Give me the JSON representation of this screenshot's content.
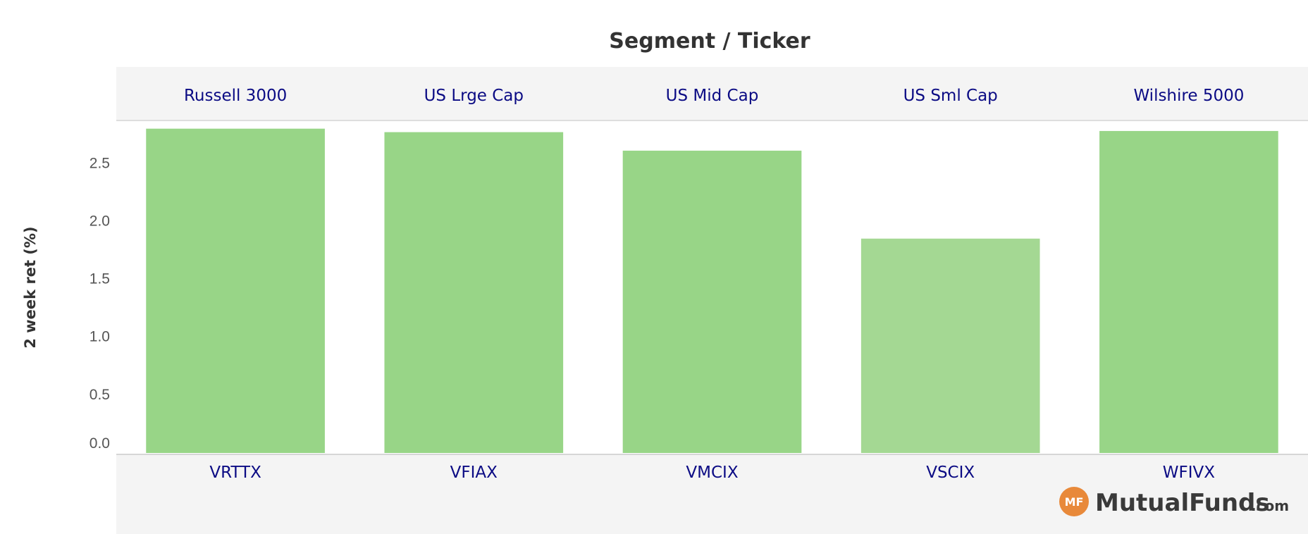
{
  "chart_data": {
    "type": "bar",
    "title": "Segment / Ticker",
    "ylabel": "2 week ret (%)",
    "ylim": [
      0,
      2.8
    ],
    "yticks": [
      "0.0",
      "0.5",
      "1.0",
      "1.5",
      "2.0",
      "2.5"
    ],
    "segments": [
      "Russell 3000",
      "US Lrge Cap",
      "US Mid Cap",
      "US Sml Cap",
      "Wilshire 5000"
    ],
    "categories": [
      "VRTTX",
      "VFIAX",
      "VMCIX",
      "VSCIX",
      "WFIVX"
    ],
    "values": [
      2.79,
      2.76,
      2.6,
      1.84,
      2.77
    ],
    "colors": [
      "#98d587",
      "#98d587",
      "#98d587",
      "#a4d893",
      "#98d587"
    ],
    "grid": false,
    "legend": "none"
  },
  "logo": {
    "badge": "MF",
    "name": "MutualFunds",
    "suffix": ".com",
    "badge_color": "#e8893a"
  }
}
